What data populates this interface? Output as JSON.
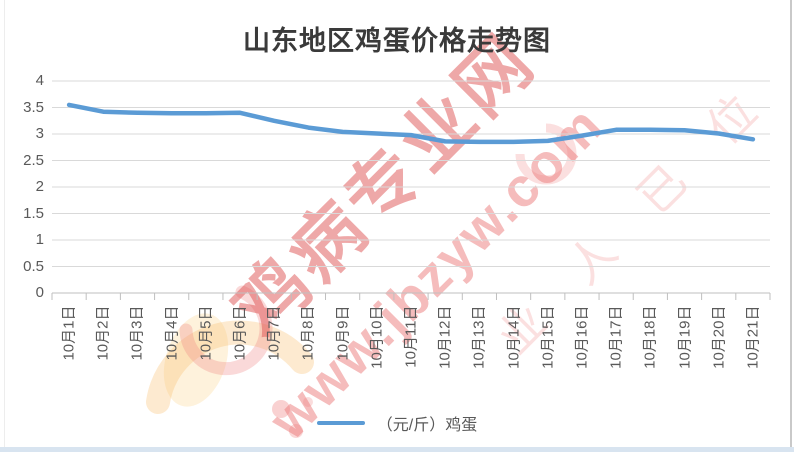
{
  "title": "山东地区鸡蛋价格走势图",
  "chart_data": {
    "type": "line",
    "title": "山东地区鸡蛋价格走势图",
    "categories": [
      "10月1日",
      "10月2日",
      "10月3日",
      "10月4日",
      "10月5日",
      "10月6日",
      "10月7日",
      "10月8日",
      "10月9日",
      "10月10日",
      "10月11日",
      "10月12日",
      "10月13日",
      "10月14日",
      "10月15日",
      "10月16日",
      "10月17日",
      "10月18日",
      "10月19日",
      "10月20日",
      "10月21日"
    ],
    "series": [
      {
        "name": "（元/斤）鸡蛋",
        "values": [
          3.55,
          3.42,
          3.4,
          3.39,
          3.39,
          3.4,
          3.25,
          3.12,
          3.04,
          3.01,
          2.98,
          2.86,
          2.85,
          2.85,
          2.87,
          2.97,
          3.08,
          3.08,
          3.07,
          3.01,
          2.9
        ],
        "color": "#5b9bd5"
      }
    ],
    "xlabel": "",
    "ylabel": "",
    "ylim": [
      0,
      4
    ],
    "ytick_step": 0.5,
    "grid": true,
    "legend_position": "bottom"
  },
  "legend": {
    "marker": "line",
    "label": "（元/斤）鸡蛋"
  },
  "watermark": {
    "site_name": "鸡病专业网",
    "site_url": "www.jbzyw.com",
    "faint_text": "业 人 已 位",
    "color": "#dd5252"
  },
  "colors": {
    "line": "#5b9bd5",
    "gridline": "#d9d9d9",
    "axis": "#bfbfbf",
    "tick_text": "#595959",
    "title_text": "#3a3a3a",
    "bottom_bar": "#d8e4f0"
  }
}
